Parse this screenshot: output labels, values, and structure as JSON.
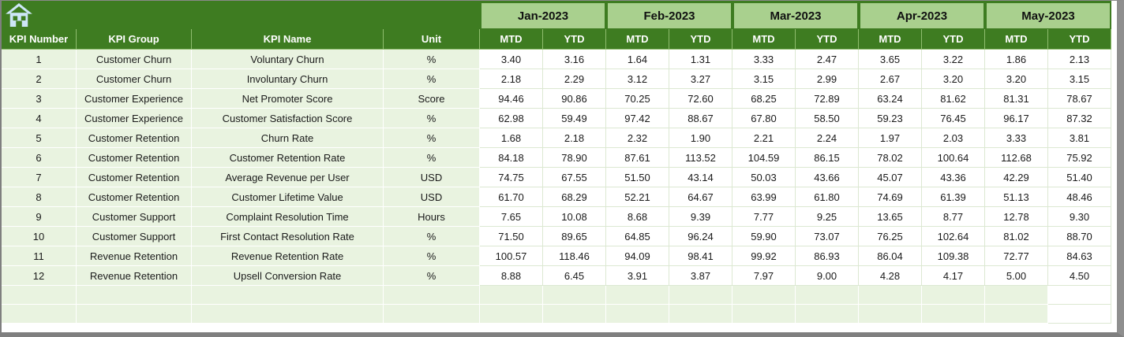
{
  "colors": {
    "dark_green": "#3e7c21",
    "light_green": "#a9d08e",
    "pale_green": "#e9f3e0",
    "grid_line": "#dce8d2",
    "window_border_gray": "#7f7f7f",
    "home_icon_blue": "#cde6f7"
  },
  "table": {
    "left_headers": [
      "KPI Number",
      "KPI Group",
      "KPI Name",
      "Unit"
    ],
    "months": [
      "Jan-2023",
      "Feb-2023",
      "Mar-2023",
      "Apr-2023",
      "May-2023"
    ],
    "sub_headers": [
      "MTD",
      "YTD"
    ],
    "rows": [
      {
        "kpi_number": "1",
        "kpi_group": "Customer Churn",
        "kpi_name": "Voluntary Churn",
        "unit": "%",
        "values": [
          "3.40",
          "3.16",
          "1.64",
          "1.31",
          "3.33",
          "2.47",
          "3.65",
          "3.22",
          "1.86",
          "2.13"
        ]
      },
      {
        "kpi_number": "2",
        "kpi_group": "Customer Churn",
        "kpi_name": "Involuntary Churn",
        "unit": "%",
        "values": [
          "2.18",
          "2.29",
          "3.12",
          "3.27",
          "3.15",
          "2.99",
          "2.67",
          "3.20",
          "3.20",
          "3.15"
        ]
      },
      {
        "kpi_number": "3",
        "kpi_group": "Customer Experience",
        "kpi_name": "Net Promoter Score",
        "unit": "Score",
        "values": [
          "94.46",
          "90.86",
          "70.25",
          "72.60",
          "68.25",
          "72.89",
          "63.24",
          "81.62",
          "81.31",
          "78.67"
        ]
      },
      {
        "kpi_number": "4",
        "kpi_group": "Customer Experience",
        "kpi_name": "Customer Satisfaction Score",
        "unit": "%",
        "values": [
          "62.98",
          "59.49",
          "97.42",
          "88.67",
          "67.80",
          "58.50",
          "59.23",
          "76.45",
          "96.17",
          "87.32"
        ]
      },
      {
        "kpi_number": "5",
        "kpi_group": "Customer Retention",
        "kpi_name": "Churn Rate",
        "unit": "%",
        "values": [
          "1.68",
          "2.18",
          "2.32",
          "1.90",
          "2.21",
          "2.24",
          "1.97",
          "2.03",
          "3.33",
          "3.81"
        ]
      },
      {
        "kpi_number": "6",
        "kpi_group": "Customer Retention",
        "kpi_name": "Customer Retention Rate",
        "unit": "%",
        "values": [
          "84.18",
          "78.90",
          "87.61",
          "113.52",
          "104.59",
          "86.15",
          "78.02",
          "100.64",
          "112.68",
          "75.92"
        ]
      },
      {
        "kpi_number": "7",
        "kpi_group": "Customer Retention",
        "kpi_name": "Average Revenue per User",
        "unit": "USD",
        "values": [
          "74.75",
          "67.55",
          "51.50",
          "43.14",
          "50.03",
          "43.66",
          "45.07",
          "43.36",
          "42.29",
          "51.40"
        ]
      },
      {
        "kpi_number": "8",
        "kpi_group": "Customer Retention",
        "kpi_name": "Customer Lifetime Value",
        "unit": "USD",
        "values": [
          "61.70",
          "68.29",
          "52.21",
          "64.67",
          "63.99",
          "61.80",
          "74.69",
          "61.39",
          "51.13",
          "48.46"
        ]
      },
      {
        "kpi_number": "9",
        "kpi_group": "Customer Support",
        "kpi_name": "Complaint Resolution Time",
        "unit": "Hours",
        "values": [
          "7.65",
          "10.08",
          "8.68",
          "9.39",
          "7.77",
          "9.25",
          "13.65",
          "8.77",
          "12.78",
          "9.30"
        ]
      },
      {
        "kpi_number": "10",
        "kpi_group": "Customer Support",
        "kpi_name": "First Contact Resolution Rate",
        "unit": "%",
        "values": [
          "71.50",
          "89.65",
          "64.85",
          "96.24",
          "59.90",
          "73.07",
          "76.25",
          "102.64",
          "81.02",
          "88.70"
        ]
      },
      {
        "kpi_number": "11",
        "kpi_group": "Revenue Retention",
        "kpi_name": "Revenue Retention Rate",
        "unit": "%",
        "values": [
          "100.57",
          "118.46",
          "94.09",
          "98.41",
          "99.92",
          "86.93",
          "86.04",
          "109.38",
          "72.77",
          "84.63"
        ]
      },
      {
        "kpi_number": "12",
        "kpi_group": "Revenue Retention",
        "kpi_name": "Upsell Conversion Rate",
        "unit": "%",
        "values": [
          "8.88",
          "6.45",
          "3.91",
          "3.87",
          "7.97",
          "9.00",
          "4.28",
          "4.17",
          "5.00",
          "4.50"
        ]
      }
    ],
    "empty_row_count": 2
  }
}
